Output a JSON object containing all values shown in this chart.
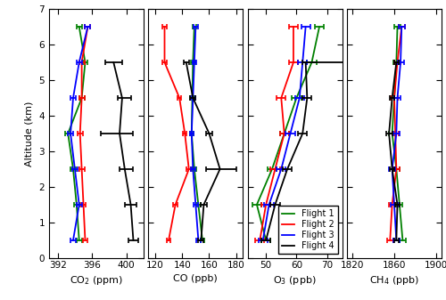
{
  "altitudes": [
    0.5,
    1.5,
    2.5,
    3.5,
    4.5,
    5.5,
    6.5
  ],
  "co2": {
    "flight1": {
      "median": [
        394.5,
        394.2,
        393.8,
        393.2,
        394.8,
        395.2,
        394.5
      ],
      "q1": [
        394.2,
        393.9,
        393.5,
        392.9,
        394.5,
        394.9,
        394.2
      ],
      "q3": [
        394.8,
        394.5,
        394.1,
        393.5,
        395.1,
        395.5,
        394.8
      ]
    },
    "flight2": {
      "median": [
        395.2,
        395.0,
        394.8,
        394.6,
        394.8,
        394.8,
        395.5
      ],
      "q1": [
        394.9,
        394.7,
        394.5,
        394.3,
        394.5,
        394.5,
        395.2
      ],
      "q3": [
        395.5,
        395.3,
        395.1,
        394.9,
        395.1,
        395.1,
        395.8
      ]
    },
    "flight3": {
      "median": [
        393.8,
        394.5,
        394.0,
        393.5,
        393.8,
        394.5,
        395.5
      ],
      "q1": [
        393.5,
        394.2,
        393.7,
        393.2,
        393.5,
        394.2,
        395.2
      ],
      "q3": [
        394.1,
        394.8,
        394.3,
        393.8,
        394.1,
        394.8,
        395.8
      ]
    },
    "flight4": {
      "median": [
        400.8,
        400.5,
        399.8,
        399.2,
        399.5,
        398.5,
        null
      ],
      "q1": [
        400.2,
        399.8,
        399.2,
        397.0,
        399.0,
        397.5,
        null
      ],
      "q3": [
        401.4,
        401.2,
        400.8,
        400.8,
        400.5,
        399.5,
        null
      ]
    }
  },
  "co": {
    "flight1": {
      "median": [
        155.0,
        152.0,
        149.0,
        147.0,
        147.5,
        148.0,
        149.0
      ],
      "q1": [
        153.5,
        150.5,
        147.5,
        145.5,
        146.0,
        146.5,
        147.5
      ],
      "q3": [
        156.5,
        153.5,
        150.5,
        148.5,
        149.0,
        149.5,
        150.5
      ]
    },
    "flight2": {
      "median": [
        130.0,
        135.0,
        145.0,
        142.0,
        138.0,
        127.0,
        127.0
      ],
      "q1": [
        128.5,
        133.5,
        143.5,
        140.5,
        136.5,
        125.5,
        125.5
      ],
      "q3": [
        131.5,
        136.5,
        146.5,
        143.5,
        139.5,
        128.5,
        128.5
      ]
    },
    "flight3": {
      "median": [
        152.0,
        150.0,
        148.0,
        147.0,
        148.0,
        149.0,
        150.0
      ],
      "q1": [
        150.5,
        148.5,
        146.5,
        145.5,
        146.5,
        147.5,
        148.5
      ],
      "q3": [
        153.5,
        151.5,
        149.5,
        148.5,
        149.5,
        150.5,
        151.5
      ]
    },
    "flight4": {
      "median": [
        154.0,
        156.0,
        168.0,
        160.0,
        148.0,
        143.0,
        null
      ],
      "q1": [
        152.0,
        153.5,
        158.0,
        158.0,
        146.0,
        141.0,
        null
      ],
      "q3": [
        156.0,
        158.5,
        180.0,
        162.0,
        150.0,
        145.0,
        null
      ]
    }
  },
  "o3": {
    "flight1": {
      "median": [
        50.0,
        47.0,
        52.0,
        56.0,
        60.0,
        65.0,
        67.5
      ],
      "q1": [
        48.5,
        45.5,
        50.5,
        54.5,
        58.5,
        63.5,
        66.0
      ],
      "q3": [
        51.5,
        48.5,
        53.5,
        57.5,
        61.5,
        66.5,
        69.0
      ]
    },
    "flight2": {
      "median": [
        48.0,
        50.0,
        53.0,
        56.0,
        55.0,
        59.0,
        59.0
      ],
      "q1": [
        46.5,
        48.5,
        51.5,
        54.5,
        53.5,
        57.5,
        57.5
      ],
      "q3": [
        49.5,
        51.5,
        54.5,
        57.5,
        56.5,
        60.5,
        60.5
      ]
    },
    "flight3": {
      "median": [
        49.0,
        51.0,
        55.0,
        58.0,
        61.0,
        62.0,
        63.0
      ],
      "q1": [
        47.5,
        49.5,
        53.5,
        56.5,
        59.5,
        60.5,
        61.5
      ],
      "q3": [
        50.5,
        52.5,
        56.5,
        59.5,
        62.5,
        63.5,
        64.5
      ]
    },
    "flight4": {
      "median": [
        50.0,
        53.0,
        57.0,
        62.0,
        63.5,
        63.0,
        null
      ],
      "q1": [
        48.5,
        51.5,
        55.5,
        60.5,
        62.0,
        62.0,
        null
      ],
      "q3": [
        51.5,
        54.5,
        58.5,
        63.5,
        65.0,
        100.0,
        null
      ]
    }
  },
  "ch4": {
    "flight1": {
      "median": [
        1868.0,
        1865.0,
        1862.0,
        1858.0,
        1860.0,
        1862.0,
        1863.0
      ],
      "q1": [
        1865.0,
        1862.0,
        1859.0,
        1855.0,
        1857.0,
        1859.0,
        1860.0
      ],
      "q3": [
        1871.0,
        1868.0,
        1865.0,
        1861.0,
        1863.0,
        1865.0,
        1866.0
      ]
    },
    "flight2": {
      "median": [
        1856.0,
        1858.0,
        1862.0,
        1861.0,
        1860.0,
        1863.0,
        1867.0
      ],
      "q1": [
        1853.0,
        1855.0,
        1859.0,
        1858.0,
        1857.0,
        1860.0,
        1864.0
      ],
      "q3": [
        1859.0,
        1861.0,
        1865.0,
        1864.0,
        1863.0,
        1866.0,
        1870.0
      ]
    },
    "flight3": {
      "median": [
        1862.0,
        1860.0,
        1858.0,
        1862.0,
        1863.0,
        1866.0,
        1867.0
      ],
      "q1": [
        1859.0,
        1857.0,
        1855.0,
        1859.0,
        1860.0,
        1863.0,
        1864.0
      ],
      "q3": [
        1865.0,
        1863.0,
        1861.0,
        1865.0,
        1866.0,
        1869.0,
        1870.0
      ]
    },
    "flight4": {
      "median": [
        1862.0,
        1863.0,
        1858.0,
        1855.0,
        1858.0,
        1862.0,
        null
      ],
      "q1": [
        1860.0,
        1861.0,
        1856.0,
        1852.0,
        1856.0,
        1860.0,
        null
      ],
      "q3": [
        1864.0,
        1865.0,
        1860.0,
        1858.0,
        1860.0,
        1864.0,
        null
      ]
    }
  },
  "colors": {
    "flight1": "#008000",
    "flight2": "#ff0000",
    "flight3": "#0000ff",
    "flight4": "#000000"
  },
  "ylim": [
    0,
    7
  ],
  "yticks": [
    0,
    1,
    2,
    3,
    4,
    5,
    6,
    7
  ],
  "co2_xlim": [
    391,
    402
  ],
  "co2_xticks": [
    392,
    396,
    400
  ],
  "co_xlim": [
    115,
    185
  ],
  "co_xticks": [
    120,
    140,
    160,
    180
  ],
  "o3_xlim": [
    44,
    75
  ],
  "o3_xticks": [
    50,
    60,
    70
  ],
  "ch4_xlim": [
    1815,
    1905
  ],
  "ch4_xticks": [
    1820,
    1860,
    1900
  ],
  "ylabel": "Altitude (km)",
  "xlabel_co2": "CO$_2$ (ppm)",
  "xlabel_co": "CO (ppb)",
  "xlabel_o3": "O$_3$ (ppb)",
  "xlabel_ch4": "CH$_4$ (ppb)",
  "legend_labels": [
    "Flight 1",
    "Flight 2",
    "Flight 3",
    "Flight 4"
  ],
  "legend_colors": [
    "#008000",
    "#ff0000",
    "#0000ff",
    "#000000"
  ]
}
